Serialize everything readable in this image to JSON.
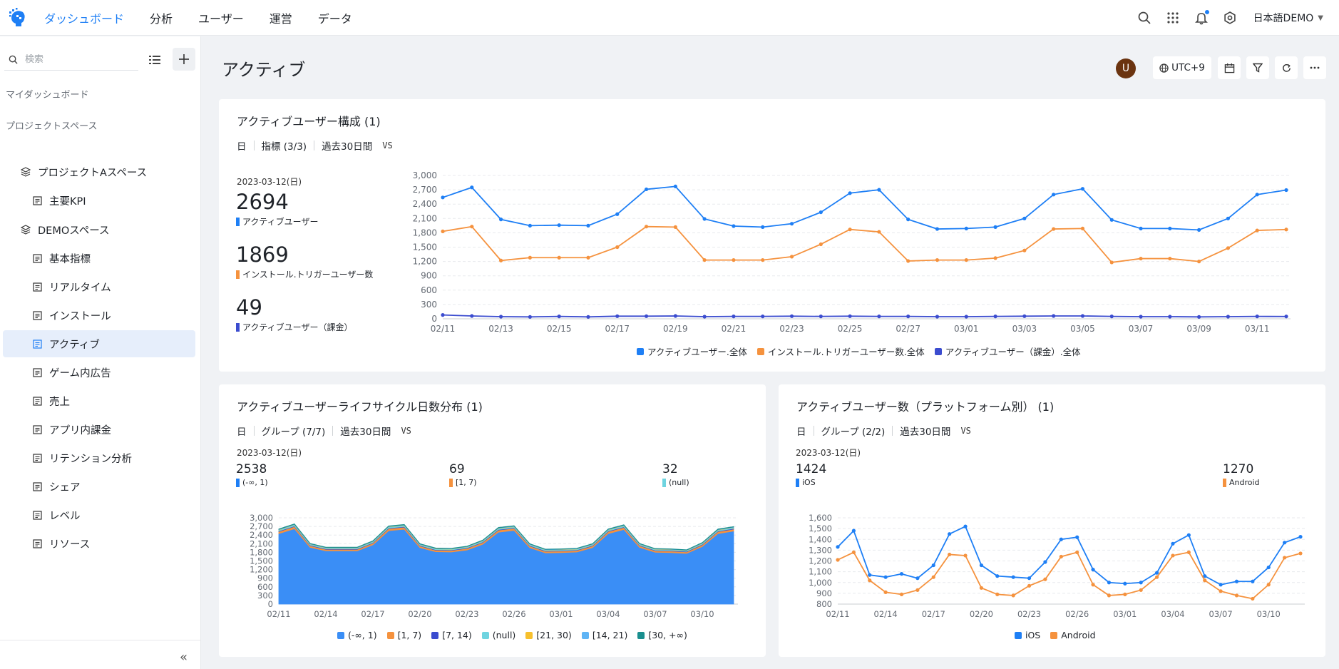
{
  "topbar": {
    "nav": [
      "ダッシュボード",
      "分析",
      "ユーザー",
      "運営",
      "データ"
    ],
    "active_index": 0,
    "language": "日本語DEMO",
    "accent": "#1e7ff5"
  },
  "sidebar": {
    "search_placeholder": "検索",
    "my_dashboard": "マイダッシュボード",
    "project_space": "プロジェクトスペース",
    "items": [
      {
        "label": "プロジェクトAスペース",
        "icon": "layers-icon"
      },
      {
        "label": "主要KPI",
        "icon": "document-icon"
      },
      {
        "label": "DEMOスペース",
        "icon": "layers-icon"
      },
      {
        "label": "基本指標",
        "icon": "document-icon"
      },
      {
        "label": "リアルタイム",
        "icon": "document-icon"
      },
      {
        "label": "インストール",
        "icon": "document-icon"
      },
      {
        "label": "アクティブ",
        "icon": "document-icon"
      },
      {
        "label": "ゲーム内広告",
        "icon": "document-icon"
      },
      {
        "label": "売上",
        "icon": "document-icon"
      },
      {
        "label": "アプリ内課金",
        "icon": "document-icon"
      },
      {
        "label": "リテンション分析",
        "icon": "document-icon"
      },
      {
        "label": "シェア",
        "icon": "document-icon"
      },
      {
        "label": "レベル",
        "icon": "document-icon"
      },
      {
        "label": "リソース",
        "icon": "document-icon"
      }
    ],
    "active_item": "アクティブ",
    "collapse_symbol": "«"
  },
  "main": {
    "title": "アクティブ",
    "avatar_initial": "U",
    "timezone": "UTC+9"
  },
  "cards": {
    "active_composition": {
      "title": "アクティブユーザー構成 (1)",
      "filters": [
        "日",
        "指標 (3/3)",
        "過去30日間"
      ],
      "vs": "VS",
      "date": "2023-03-12(日)",
      "kpis": [
        {
          "value": "2694",
          "label": "アクティブユーザー",
          "color": "#1e7ff5"
        },
        {
          "value": "1869",
          "label": "インストール.トリガーユーザー数",
          "color": "#f5923e"
        },
        {
          "value": "49",
          "label": "アクティブユーザー（課金）",
          "color": "#3b4ccf"
        }
      ]
    },
    "lifecycle": {
      "title": "アクティブユーザーライフサイクル日数分布 (1)",
      "filters": [
        "日",
        "グループ (7/7)",
        "過去30日間"
      ],
      "vs": "VS",
      "date": "2023-03-12(日)",
      "kpis": [
        {
          "value": "2538",
          "label": "(-∞, 1)",
          "color": "#1e7ff5"
        },
        {
          "value": "69",
          "label": "[1, 7)",
          "color": "#f5923e"
        },
        {
          "value": "32",
          "label": "(null)",
          "color": "#6fd4e0"
        }
      ]
    },
    "platform": {
      "title": "アクティブユーザー数（プラットフォーム別） (1)",
      "filters": [
        "日",
        "グループ (2/2)",
        "過去30日間"
      ],
      "vs": "VS",
      "date": "2023-03-12(日)",
      "kpis": [
        {
          "value": "1424",
          "label": "iOS",
          "color": "#1e7ff5"
        },
        {
          "value": "1270",
          "label": "Android",
          "color": "#f5923e"
        }
      ]
    }
  },
  "chart_data": [
    {
      "type": "line",
      "x": [
        "02/11",
        "02/12",
        "02/13",
        "02/14",
        "02/15",
        "02/16",
        "02/17",
        "02/18",
        "02/19",
        "02/20",
        "02/21",
        "02/22",
        "02/23",
        "02/24",
        "02/25",
        "02/26",
        "02/27",
        "02/28",
        "03/01",
        "03/02",
        "03/03",
        "03/04",
        "03/05",
        "03/06",
        "03/07",
        "03/08",
        "03/09",
        "03/10",
        "03/11",
        "03/12"
      ],
      "xticks": [
        "02/11",
        "02/13",
        "02/15",
        "02/17",
        "02/19",
        "02/21",
        "02/23",
        "02/25",
        "02/27",
        "03/01",
        "03/03",
        "03/05",
        "03/07",
        "03/09",
        "03/11"
      ],
      "ylim": [
        0,
        3000
      ],
      "yticks": [
        0,
        300,
        600,
        900,
        1200,
        1500,
        1800,
        2100,
        2400,
        2700,
        3000
      ],
      "grid": true,
      "legend": "bottom",
      "series": [
        {
          "name": "アクティブユーザー.全体",
          "color": "#1e7ff5",
          "values": [
            2540,
            2750,
            2080,
            1950,
            1960,
            1950,
            2190,
            2710,
            2770,
            2090,
            1940,
            1920,
            1990,
            2230,
            2630,
            2700,
            2080,
            1880,
            1890,
            1920,
            2100,
            2600,
            2720,
            2070,
            1890,
            1890,
            1860,
            2100,
            2600,
            2694
          ]
        },
        {
          "name": "インストール.トリガーユーザー数.全体",
          "color": "#f5923e",
          "values": [
            1830,
            1930,
            1220,
            1280,
            1280,
            1280,
            1500,
            1930,
            1920,
            1230,
            1230,
            1230,
            1300,
            1560,
            1870,
            1820,
            1210,
            1230,
            1230,
            1270,
            1430,
            1880,
            1890,
            1180,
            1260,
            1260,
            1200,
            1480,
            1850,
            1869
          ]
        },
        {
          "name": "アクティブユーザー（課金）.全体",
          "color": "#3b4ccf",
          "values": [
            80,
            60,
            45,
            40,
            50,
            40,
            55,
            55,
            60,
            45,
            50,
            50,
            55,
            50,
            55,
            50,
            50,
            45,
            45,
            50,
            55,
            60,
            60,
            50,
            45,
            45,
            40,
            45,
            50,
            49
          ]
        }
      ]
    },
    {
      "type": "area",
      "stacked": true,
      "x": [
        "02/11",
        "02/12",
        "02/13",
        "02/14",
        "02/15",
        "02/16",
        "02/17",
        "02/18",
        "02/19",
        "02/20",
        "02/21",
        "02/22",
        "02/23",
        "02/24",
        "02/25",
        "02/26",
        "02/27",
        "02/28",
        "03/01",
        "03/02",
        "03/03",
        "03/04",
        "03/05",
        "03/06",
        "03/07",
        "03/08",
        "03/09",
        "03/10",
        "03/11",
        "03/12"
      ],
      "xticks": [
        "02/11",
        "02/14",
        "02/17",
        "02/20",
        "02/23",
        "02/26",
        "03/01",
        "03/04",
        "03/07",
        "03/10"
      ],
      "ylim": [
        0,
        3000
      ],
      "yticks": [
        0,
        300,
        600,
        900,
        1200,
        1500,
        1800,
        2100,
        2400,
        2700,
        3000
      ],
      "grid": true,
      "legend": "bottom",
      "series": [
        {
          "name": "(-∞, 1)",
          "color": "#3a8ef6",
          "values": [
            2450,
            2620,
            1970,
            1850,
            1850,
            1850,
            2060,
            2550,
            2600,
            1960,
            1820,
            1810,
            1880,
            2080,
            2500,
            2560,
            1960,
            1780,
            1790,
            1810,
            1960,
            2450,
            2590,
            1970,
            1800,
            1790,
            1760,
            2000,
            2450,
            2538
          ]
        },
        {
          "name": "[1, 7)",
          "color": "#f5923e",
          "values": [
            70,
            75,
            60,
            55,
            55,
            55,
            60,
            75,
            75,
            60,
            55,
            55,
            58,
            62,
            72,
            74,
            60,
            55,
            55,
            56,
            60,
            72,
            75,
            60,
            56,
            56,
            54,
            60,
            70,
            69
          ]
        },
        {
          "name": "[7, 14)",
          "color": "#3b4ccf",
          "values": [
            20,
            20,
            18,
            17,
            17,
            17,
            18,
            20,
            20,
            18,
            17,
            17,
            17,
            18,
            20,
            20,
            18,
            17,
            17,
            17,
            18,
            20,
            20,
            18,
            17,
            17,
            17,
            18,
            20,
            20
          ]
        },
        {
          "name": "(null)",
          "color": "#6fd4e0",
          "values": [
            35,
            38,
            30,
            28,
            28,
            28,
            30,
            36,
            37,
            30,
            28,
            28,
            29,
            31,
            35,
            36,
            30,
            28,
            28,
            28,
            30,
            35,
            36,
            30,
            28,
            28,
            27,
            30,
            34,
            32
          ]
        },
        {
          "name": "[21, 30)",
          "color": "#f7c02d",
          "values": [
            10,
            10,
            9,
            9,
            9,
            9,
            9,
            10,
            10,
            9,
            9,
            9,
            9,
            9,
            10,
            10,
            9,
            9,
            9,
            9,
            9,
            10,
            10,
            9,
            9,
            9,
            9,
            9,
            10,
            10
          ]
        },
        {
          "name": "[14, 21)",
          "color": "#5fb4f5",
          "values": [
            12,
            12,
            10,
            10,
            10,
            10,
            11,
            12,
            12,
            10,
            10,
            10,
            10,
            11,
            12,
            12,
            10,
            10,
            10,
            10,
            11,
            12,
            12,
            10,
            10,
            10,
            10,
            11,
            12,
            12
          ]
        },
        {
          "name": "[30, +∞)",
          "color": "#1a8f8f",
          "values": [
            15,
            16,
            13,
            12,
            12,
            12,
            13,
            15,
            15,
            13,
            12,
            12,
            12,
            13,
            15,
            15,
            13,
            12,
            12,
            12,
            13,
            15,
            15,
            13,
            12,
            12,
            12,
            13,
            15,
            13
          ]
        }
      ]
    },
    {
      "type": "line",
      "x": [
        "02/11",
        "02/12",
        "02/13",
        "02/14",
        "02/15",
        "02/16",
        "02/17",
        "02/18",
        "02/19",
        "02/20",
        "02/21",
        "02/22",
        "02/23",
        "02/24",
        "02/25",
        "02/26",
        "02/27",
        "02/28",
        "03/01",
        "03/02",
        "03/03",
        "03/04",
        "03/05",
        "03/06",
        "03/07",
        "03/08",
        "03/09",
        "03/10",
        "03/11",
        "03/12"
      ],
      "xticks": [
        "02/11",
        "02/14",
        "02/17",
        "02/20",
        "02/23",
        "02/26",
        "03/01",
        "03/04",
        "03/07",
        "03/10"
      ],
      "ylim": [
        800,
        1600
      ],
      "yticks": [
        800,
        900,
        1000,
        1100,
        1200,
        1300,
        1400,
        1500,
        1600
      ],
      "grid": true,
      "legend": "bottom",
      "series": [
        {
          "name": "iOS",
          "color": "#1e7ff5",
          "values": [
            1330,
            1480,
            1070,
            1050,
            1080,
            1040,
            1160,
            1450,
            1520,
            1160,
            1060,
            1050,
            1040,
            1190,
            1400,
            1420,
            1120,
            1000,
            990,
            1000,
            1090,
            1360,
            1440,
            1060,
            980,
            1010,
            1010,
            1140,
            1370,
            1424
          ]
        },
        {
          "name": "Android",
          "color": "#f5923e",
          "values": [
            1210,
            1280,
            1020,
            910,
            890,
            930,
            1050,
            1260,
            1250,
            950,
            890,
            880,
            970,
            1030,
            1240,
            1280,
            980,
            880,
            890,
            930,
            1050,
            1250,
            1280,
            1020,
            920,
            880,
            850,
            980,
            1230,
            1270
          ]
        }
      ]
    }
  ]
}
